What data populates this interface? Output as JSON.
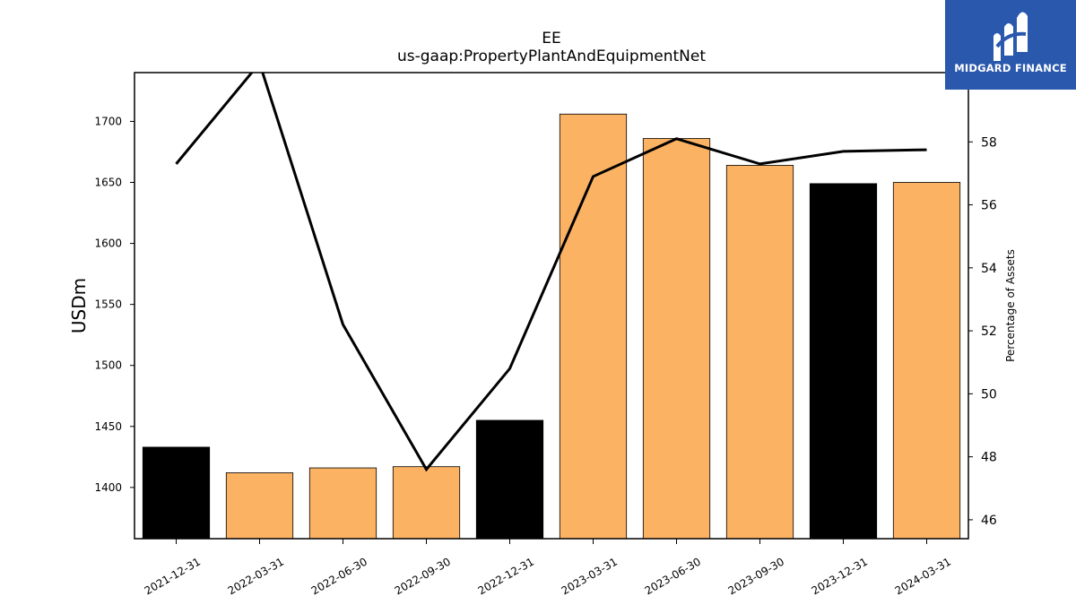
{
  "chart_data": {
    "type": "bar",
    "title": "EE",
    "subtitle": "us-gaap:PropertyPlantAndEquipmentNet",
    "ylabel": "USDm",
    "y2label": "Percentage of Assets",
    "categories": [
      "2021-12-31",
      "2022-03-31",
      "2022-06-30",
      "2022-09-30",
      "2022-12-31",
      "2023-03-31",
      "2023-06-30",
      "2023-09-30",
      "2023-12-31",
      "2024-03-31"
    ],
    "values": [
      1433,
      1412,
      1416,
      1417,
      1455,
      1706,
      1686,
      1664,
      1649,
      1650
    ],
    "bar_colors": [
      "#000000",
      "#fbb263",
      "#fbb263",
      "#fbb263",
      "#000000",
      "#fbb263",
      "#fbb263",
      "#fbb263",
      "#000000",
      "#fbb263"
    ],
    "ylim": [
      1358,
      1740
    ],
    "yticks": [
      1400,
      1450,
      1500,
      1550,
      1600,
      1650,
      1700
    ],
    "line_series": {
      "values": [
        57.3,
        60.5,
        52.2,
        47.6,
        50.8,
        56.9,
        58.1,
        57.3,
        57.7,
        57.75
      ],
      "color": "#000000"
    },
    "y2lim": [
      45.4,
      60.2
    ],
    "y2ticks": [
      46,
      48,
      50,
      52,
      54,
      56,
      58
    ],
    "grid": false,
    "legend": "none"
  },
  "logo": {
    "text": "MIDGARD FINANCE",
    "color": "#2a58ad"
  }
}
